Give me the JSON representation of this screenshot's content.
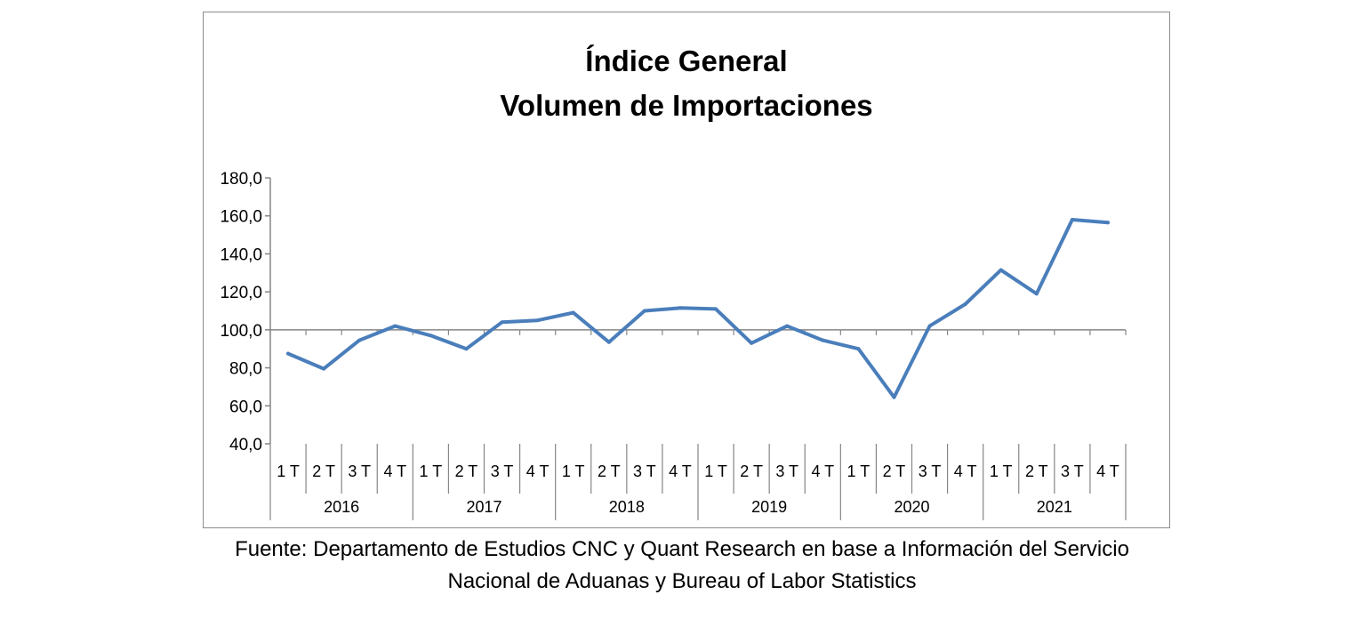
{
  "chart_data": {
    "type": "line",
    "title_lines": [
      "Índice General",
      "Volumen de Importaciones"
    ],
    "ylim": [
      40,
      180
    ],
    "yticks": [
      "180,0",
      "160,0",
      "140,0",
      "120,0",
      "100,0",
      "80,0",
      "60,0",
      "40,0"
    ],
    "ytick_values": [
      180,
      160,
      140,
      120,
      100,
      80,
      60,
      40
    ],
    "quarters": [
      "1 T",
      "2 T",
      "3 T",
      "4 T",
      "1 T",
      "2 T",
      "3 T",
      "4 T",
      "1 T",
      "2 T",
      "3 T",
      "4 T",
      "1 T",
      "2 T",
      "3 T",
      "4 T",
      "1 T",
      "2 T",
      "3 T",
      "4 T",
      "1 T",
      "2 T",
      "3 T",
      "4 T"
    ],
    "years": [
      "2016",
      "2017",
      "2018",
      "2019",
      "2020",
      "2021"
    ],
    "x_crosses_at": 100,
    "grid": false,
    "legend": "none",
    "series": [
      {
        "color": "#4a7ebb",
        "values": [
          87.5,
          79.5,
          94.5,
          102.0,
          97.0,
          90.0,
          104.0,
          105.0,
          109.0,
          93.5,
          110.0,
          111.5,
          111.0,
          93.0,
          102.0,
          94.5,
          90.0,
          64.5,
          102.0,
          113.5,
          131.5,
          119.0,
          158.0,
          156.5
        ]
      }
    ]
  },
  "source": {
    "line1": "Fuente: Departamento de Estudios CNC y Quant Research en base a Información del Servicio",
    "line2": "Nacional de Aduanas y Bureau of Labor Statistics"
  }
}
